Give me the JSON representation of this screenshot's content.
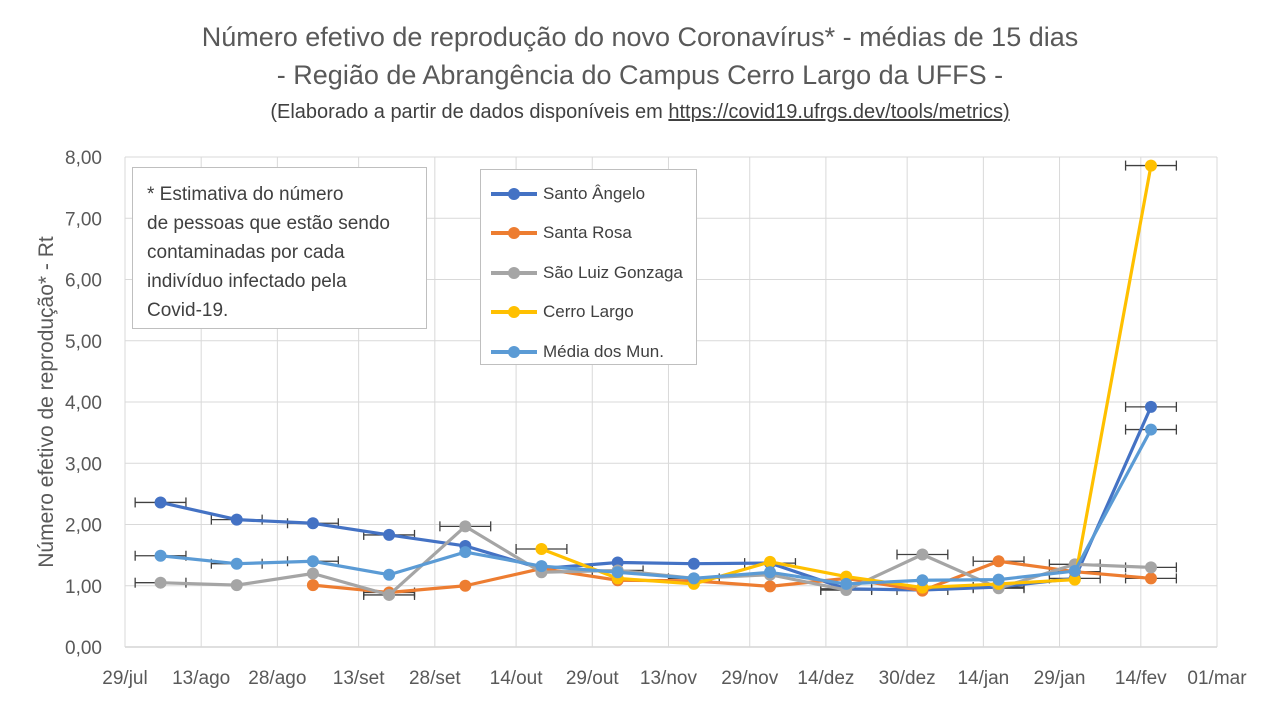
{
  "chart_data": {
    "type": "line",
    "title": "Número efetivo de reprodução do novo Coronavírus*  - médias de 15 dias",
    "subtitle": "- Região de Abrangência do Campus Cerro Largo da UFFS -",
    "source_prefix": "(Elaborado a partir de dados disponíveis em ",
    "source_url": "https://covid19.ufrgs.dev/tools/metrics)",
    "ylabel": "Número efetivo de reprodução*  - Rt",
    "xlabel": "",
    "ylim": [
      0,
      8
    ],
    "yticks": [
      "0,00",
      "1,00",
      "2,00",
      "3,00",
      "4,00",
      "5,00",
      "6,00",
      "7,00",
      "8,00"
    ],
    "xticks": [
      "29/jul",
      "13/ago",
      "28/ago",
      "13/set",
      "28/set",
      "14/out",
      "29/out",
      "13/nov",
      "29/nov",
      "14/dez",
      "30/dez",
      "14/jan",
      "29/jan",
      "14/fev",
      "01/mar"
    ],
    "xtick_values": [
      0,
      15,
      30,
      46,
      61,
      77,
      92,
      107,
      123,
      138,
      154,
      169,
      184,
      200,
      215
    ],
    "grid": true,
    "legend_position": "top-center",
    "note": "* Estimativa do número\nde pessoas que estão sendo\ncontaminadas por cada\nindivíduo infectado pela\nCovid-19.",
    "series": [
      {
        "name": "Santo Ângelo",
        "color": "#4472C4",
        "x": [
          7,
          22,
          37,
          52,
          67,
          82,
          97,
          112,
          127,
          142,
          157,
          172,
          187,
          202
        ],
        "y": [
          2.36,
          2.08,
          2.02,
          1.83,
          1.65,
          1.28,
          1.38,
          1.36,
          1.37,
          0.95,
          0.93,
          0.98,
          1.12,
          3.92
        ],
        "error_bars": [
          0,
          1,
          2,
          3,
          8,
          9,
          10,
          11,
          12,
          13
        ]
      },
      {
        "name": "Santa Rosa",
        "color": "#ED7D31",
        "x": [
          37,
          52,
          67,
          82,
          97,
          112,
          127,
          142,
          157,
          172,
          187,
          202
        ],
        "y": [
          1.01,
          0.89,
          1.0,
          1.28,
          1.09,
          1.08,
          0.99,
          1.12,
          0.92,
          1.4,
          1.23,
          1.12
        ],
        "error_bars": [
          1,
          9,
          10,
          11
        ]
      },
      {
        "name": "São Luiz Gonzaga",
        "color": "#A5A5A5",
        "x": [
          7,
          22,
          37,
          52,
          67,
          82,
          97,
          112,
          127,
          142,
          157,
          172,
          187,
          202
        ],
        "y": [
          1.05,
          1.01,
          1.2,
          0.85,
          1.97,
          1.22,
          1.25,
          1.12,
          1.18,
          0.93,
          1.51,
          0.96,
          1.35,
          1.3
        ],
        "error_bars": [
          0,
          3,
          4,
          6,
          7,
          9,
          10,
          11,
          12,
          13
        ]
      },
      {
        "name": "Cerro Largo",
        "color": "#FFC000",
        "x": [
          82,
          97,
          112,
          127,
          142,
          157,
          172,
          187,
          202
        ],
        "y": [
          1.6,
          1.12,
          1.03,
          1.39,
          1.15,
          0.97,
          1.03,
          1.1,
          7.86
        ],
        "error_bars": [
          0,
          8
        ]
      },
      {
        "name": "Média dos Mun.",
        "color": "#5B9BD5",
        "x": [
          7,
          22,
          37,
          52,
          67,
          82,
          97,
          112,
          127,
          142,
          157,
          172,
          187,
          202
        ],
        "y": [
          1.49,
          1.36,
          1.4,
          1.18,
          1.55,
          1.32,
          1.22,
          1.12,
          1.22,
          1.03,
          1.09,
          1.1,
          1.24,
          3.55
        ],
        "error_bars": [
          0,
          1,
          2,
          13
        ]
      }
    ]
  }
}
